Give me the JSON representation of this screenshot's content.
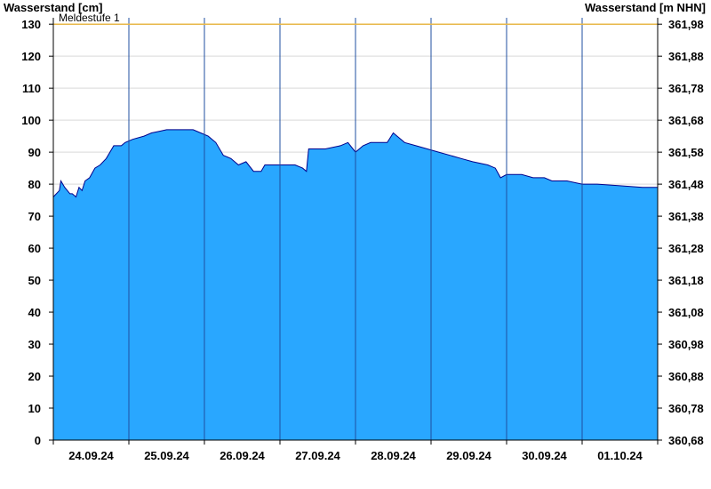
{
  "chart_data": {
    "type": "area",
    "y_left_label": "Wasserstand [cm]",
    "y_right_label": "Wasserstand [m NHN]",
    "y_left_ticks": [
      0,
      10,
      20,
      30,
      40,
      50,
      60,
      70,
      80,
      90,
      100,
      110,
      120,
      130
    ],
    "y_right_ticks": [
      "360,68",
      "360,78",
      "360,88",
      "360,98",
      "361,08",
      "361,18",
      "361,28",
      "361,38",
      "361,48",
      "361,58",
      "361,68",
      "361,78",
      "361,88",
      "361,98"
    ],
    "ylim": [
      0,
      132
    ],
    "x_range_days": [
      0,
      8
    ],
    "day_labels": [
      "24.09.24",
      "25.09.24",
      "26.09.24",
      "27.09.24",
      "28.09.24",
      "29.09.24",
      "30.09.24",
      "01.10.24"
    ],
    "threshold": {
      "name": "Meldestufe 1",
      "value": 130
    },
    "colors": {
      "fill": "#29a7ff",
      "line": "#00008b",
      "threshold": "#e8b84a",
      "grid": "#d9d9d9"
    },
    "series": [
      {
        "x_days": [
          0,
          0.08,
          0.1,
          0.15,
          0.22,
          0.25,
          0.3,
          0.34,
          0.38,
          0.42,
          0.48,
          0.55,
          0.62,
          0.7,
          0.8,
          0.9,
          0.95,
          1.05,
          1.2,
          1.3,
          1.4,
          1.5,
          1.55,
          1.7,
          1.85,
          1.95,
          2.05,
          2.15,
          2.25,
          2.35,
          2.45,
          2.55,
          2.65,
          2.75,
          2.8,
          2.9,
          3.0,
          3.2,
          3.3,
          3.35,
          3.38,
          3.45,
          3.6,
          3.8,
          3.9,
          4.0,
          4.05,
          4.1,
          4.2,
          4.3,
          4.42,
          4.5,
          4.55,
          4.65,
          4.8,
          4.95,
          5.1,
          5.25,
          5.4,
          5.55,
          5.75,
          5.85,
          5.92,
          6.0,
          6.1,
          6.2,
          6.35,
          6.5,
          6.6,
          6.8,
          7.0,
          7.2,
          7.5,
          7.8,
          8.0
        ],
        "y_cm": [
          76,
          78,
          81,
          79,
          77,
          77,
          76,
          79,
          78,
          81,
          82,
          85,
          86,
          88,
          92,
          92,
          93,
          94,
          95,
          96,
          96.5,
          97,
          97,
          97,
          97,
          96,
          95,
          93,
          89,
          88,
          86,
          87,
          84,
          84,
          86,
          86,
          86,
          86,
          85,
          84,
          91,
          91,
          91,
          92,
          93,
          90,
          91,
          92,
          93,
          93,
          93,
          96,
          95,
          93,
          92,
          91,
          90,
          89,
          88,
          87,
          86,
          85,
          82,
          83,
          83,
          83,
          82,
          82,
          81,
          81,
          80,
          80,
          79.5,
          79,
          79
        ]
      }
    ]
  }
}
